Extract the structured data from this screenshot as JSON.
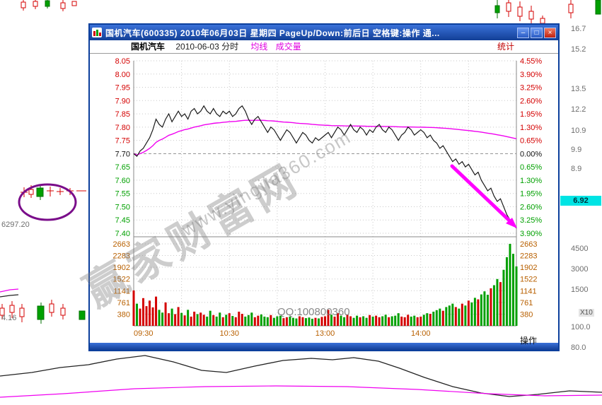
{
  "window": {
    "title": "国机汽车(600335)  2010年06月03日  星期四  PageUp/Down:前后日  空格键:操作  通...",
    "controls": [
      {
        "name": "minimize",
        "glyph": "–"
      },
      {
        "name": "maximize",
        "glyph": "□"
      },
      {
        "name": "close",
        "glyph": "×"
      }
    ]
  },
  "header": {
    "stock_name": "国机汽车",
    "date_label": "2010-06-03 分时",
    "ma_label": "均线",
    "volume_label": "成交量",
    "stats_label": "统计"
  },
  "axes": {
    "price_left": [
      "8.05",
      "8.00",
      "7.95",
      "7.90",
      "7.85",
      "7.80",
      "7.75",
      "7.70",
      "7.65",
      "7.60",
      "7.55",
      "7.50",
      "7.45",
      "7.40"
    ],
    "pct_right": [
      "4.55%",
      "3.90%",
      "3.25%",
      "2.60%",
      "1.95%",
      "1.30%",
      "0.65%",
      "0.00%",
      "0.65%",
      "1.30%",
      "1.95%",
      "2.60%",
      "3.25%",
      "3.90%"
    ],
    "volume": [
      "2663",
      "2283",
      "1902",
      "1522",
      "1141",
      "761",
      "380"
    ],
    "time": [
      "09:30",
      "10:30",
      "13:00",
      "14:00"
    ],
    "action_label": "操作"
  },
  "watermark": {
    "brand": "赢家财富网",
    "url": "www.yingjia360.com",
    "qq": "QQ:100800360"
  },
  "background": {
    "right_axis": [
      "16.7",
      "15.2",
      "13.5",
      "12.2",
      "10.9",
      "9.9",
      "8.9"
    ],
    "price_badge": "6.92",
    "right_lower": [
      "4500",
      "3000",
      "1500"
    ],
    "multiplier": "X10",
    "right_bottom": [
      "100.0",
      "80.0"
    ],
    "left_labels": [
      "6297.20",
      "4.16"
    ]
  },
  "colors": {
    "up": "#d40000",
    "down": "#00a000",
    "average": "#f000f0",
    "price": "#1a1a1a",
    "axis_volume": "#b86000",
    "annotation": "#ff00ff"
  },
  "chart_data": {
    "type": "line",
    "title": "国机汽车 2010-06-03 分时",
    "x_axis": "09:30-11:30, 13:00-15:00, one point per 2 minutes",
    "price_ref": 7.7,
    "price_range": [
      7.4,
      8.05
    ],
    "pct_range": [
      -3.9,
      4.55
    ],
    "close": 7.42,
    "series": [
      {
        "name": "price",
        "color": "#1a1a1a",
        "values": [
          7.7,
          7.69,
          7.71,
          7.72,
          7.74,
          7.76,
          7.79,
          7.83,
          7.81,
          7.8,
          7.83,
          7.85,
          7.82,
          7.84,
          7.86,
          7.84,
          7.85,
          7.83,
          7.86,
          7.87,
          7.85,
          7.86,
          7.88,
          7.86,
          7.85,
          7.87,
          7.85,
          7.84,
          7.86,
          7.85,
          7.86,
          7.84,
          7.85,
          7.87,
          7.88,
          7.86,
          7.83,
          7.81,
          7.83,
          7.84,
          7.82,
          7.8,
          7.78,
          7.8,
          7.79,
          7.77,
          7.75,
          7.77,
          7.79,
          7.78,
          7.76,
          7.74,
          7.76,
          7.78,
          7.77,
          7.75,
          7.74,
          7.76,
          7.75,
          7.76,
          7.77,
          7.78,
          7.76,
          7.78,
          7.8,
          7.79,
          7.77,
          7.79,
          7.81,
          7.79,
          7.78,
          7.8,
          7.79,
          7.77,
          7.79,
          7.78,
          7.8,
          7.81,
          7.79,
          7.78,
          7.8,
          7.79,
          7.77,
          7.75,
          7.77,
          7.78,
          7.8,
          7.79,
          7.77,
          7.78,
          7.79,
          7.78,
          7.76,
          7.77,
          7.75,
          7.74,
          7.72,
          7.73,
          7.71,
          7.69,
          7.67,
          7.68,
          7.66,
          7.67,
          7.65,
          7.66,
          7.64,
          7.62,
          7.63,
          7.6,
          7.58,
          7.56,
          7.57,
          7.54,
          7.52,
          7.53,
          7.5,
          7.47,
          7.45,
          7.43,
          7.42
        ]
      },
      {
        "name": "average",
        "color": "#f000f0",
        "derived": "cumulative-mean"
      }
    ],
    "volume": {
      "max": 2663,
      "values": [
        1150,
        720,
        560,
        900,
        640,
        820,
        600,
        950,
        520,
        430,
        760,
        410,
        560,
        380,
        610,
        420,
        340,
        520,
        300,
        460,
        380,
        430,
        360,
        300,
        490,
        350,
        300,
        430,
        280,
        360,
        410,
        320,
        280,
        460,
        390,
        300,
        350,
        430,
        280,
        330,
        370,
        300,
        280,
        350,
        260,
        310,
        330,
        250,
        280,
        300,
        260,
        240,
        310,
        280,
        250,
        270,
        230,
        260,
        240,
        290,
        310,
        520,
        360,
        300,
        410,
        330,
        280,
        360,
        310,
        260,
        330,
        280,
        310,
        260,
        350,
        300,
        330,
        280,
        310,
        360,
        280,
        310,
        330,
        410,
        300,
        280,
        360,
        300,
        330,
        280,
        300,
        360,
        410,
        390,
        460,
        510,
        560,
        490,
        610,
        660,
        720,
        610,
        560,
        720,
        660,
        820,
        760,
        910,
        860,
        1020,
        1120,
        1010,
        1220,
        1320,
        1520,
        1420,
        1820,
        2230,
        2663,
        2340,
        1930
      ]
    }
  }
}
